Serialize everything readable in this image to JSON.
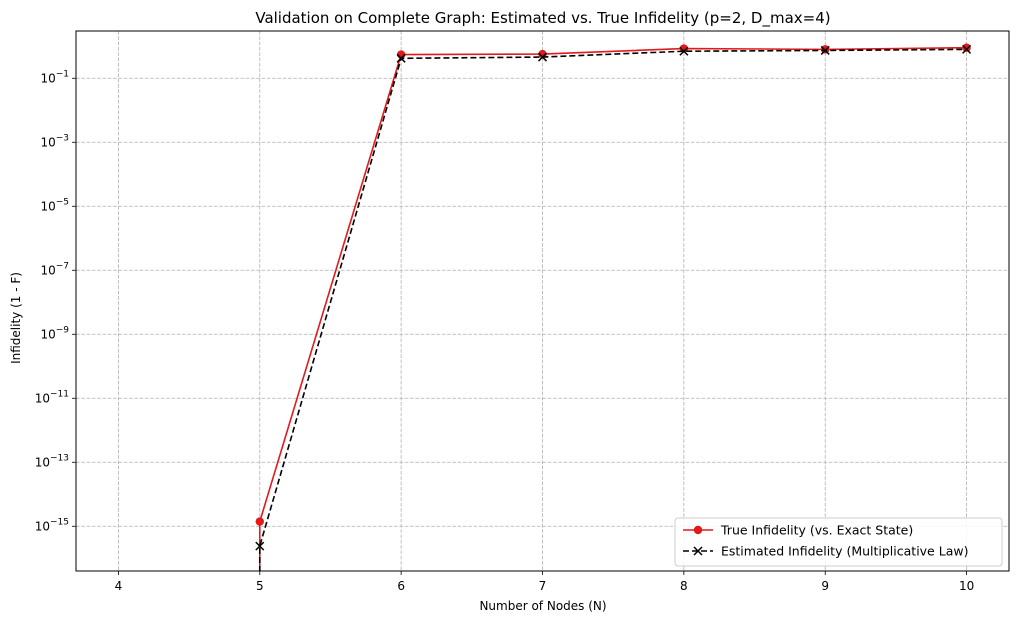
{
  "chart_data": {
    "type": "line",
    "title": "Validation on Complete Graph: Estimated vs. True Infidelity (p=2, D_max=4)",
    "xlabel": "Number of Nodes (N)",
    "ylabel": "Infidelity (1 - F)",
    "xlim": [
      3.7,
      10.3
    ],
    "ylim": [
      4e-17,
      3
    ],
    "y_scale": "log",
    "grid": true,
    "legend_position": "lower-right",
    "x_ticks": [
      4,
      5,
      6,
      7,
      8,
      9,
      10
    ],
    "x_tick_labels": [
      "4",
      "5",
      "6",
      "7",
      "8",
      "9",
      "10"
    ],
    "y_ticks": [
      {
        "value": 0.1,
        "base": "10",
        "exp": "−1"
      },
      {
        "value": 0.001,
        "base": "10",
        "exp": "−3"
      },
      {
        "value": 1e-05,
        "base": "10",
        "exp": "−5"
      },
      {
        "value": 1e-07,
        "base": "10",
        "exp": "−7"
      },
      {
        "value": 1e-09,
        "base": "10",
        "exp": "−9"
      },
      {
        "value": 1e-11,
        "base": "10",
        "exp": "−11"
      },
      {
        "value": 1e-13,
        "base": "10",
        "exp": "−13"
      },
      {
        "value": 1e-15,
        "base": "10",
        "exp": "−15"
      }
    ],
    "series": [
      {
        "name": "True Infidelity (vs. Exact State)",
        "color": "#e31a1c",
        "line_style": "solid",
        "marker": "circle",
        "x": [
          5,
          6,
          7,
          8,
          9,
          10
        ],
        "y": [
          1.4e-15,
          0.55,
          0.57,
          0.85,
          0.8,
          0.9
        ]
      },
      {
        "name": "Estimated Infidelity (Multiplicative Law)",
        "color": "#000000",
        "line_style": "dashed",
        "marker": "x",
        "x": [
          5,
          6,
          7,
          8,
          9,
          10
        ],
        "y": [
          2.4e-16,
          0.42,
          0.46,
          0.7,
          0.74,
          0.8
        ]
      }
    ]
  }
}
